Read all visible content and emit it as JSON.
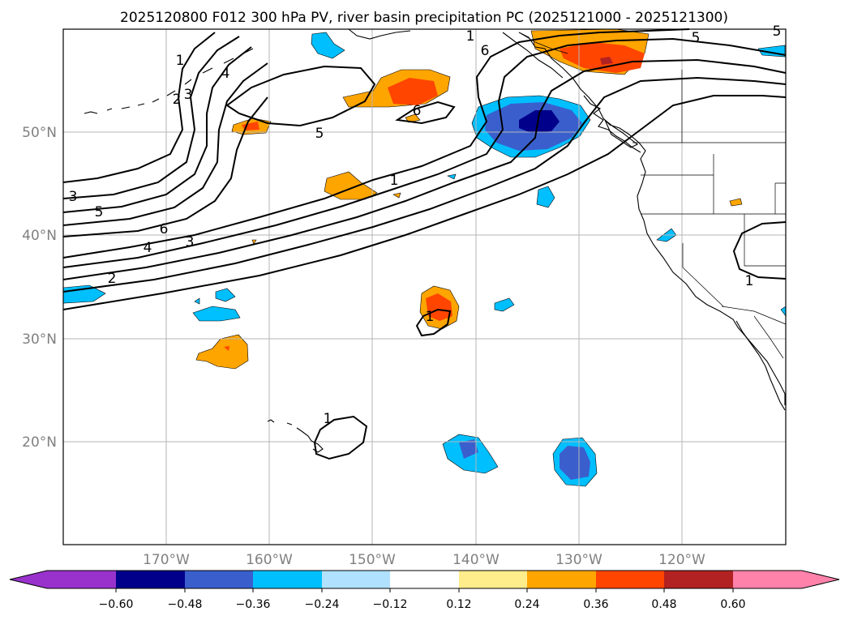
{
  "title": "2025120800 F012 300 hPa PV, river basin precipitation PC (2025121000 - 2025121300)",
  "map": {
    "lon_ticks": [
      "170°W",
      "160°W",
      "150°W",
      "140°W",
      "130°W",
      "120°W"
    ],
    "lat_ticks": [
      "50°N",
      "40°N",
      "30°N",
      "20°N"
    ],
    "gridlines": true,
    "pv_contour_labels": [
      "1",
      "2",
      "3",
      "4",
      "5",
      "6",
      "1",
      "1",
      "1",
      "2",
      "3",
      "4",
      "5",
      "6",
      "5",
      "6",
      "1",
      "5",
      "1",
      "3"
    ]
  },
  "colorbar": {
    "extend": "both",
    "tick_labels": [
      "−0.60",
      "−0.48",
      "−0.36",
      "−0.24",
      "−0.12",
      "0.12",
      "0.24",
      "0.36",
      "0.48",
      "0.60"
    ],
    "colors": {
      "under": "#9932cc",
      "bins": [
        "#00008b",
        "#3a5fcd",
        "#00bfff",
        "#b0e2ff",
        "#ffffff",
        "#ffec8b",
        "#ffa500",
        "#ff4500",
        "#b22222"
      ],
      "over": "#ff82ab"
    }
  }
}
